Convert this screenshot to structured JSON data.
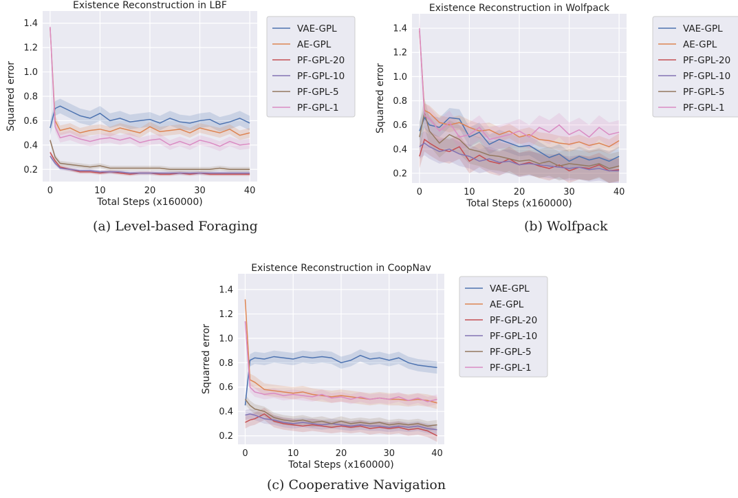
{
  "captions": {
    "a": "(a) Level-based Foraging",
    "b": "(b) Wolfpack",
    "c": "(c) Cooperative Navigation"
  },
  "colors": {
    "VAE-GPL": "#4c72b0",
    "AE-GPL": "#dd8452",
    "PF-GPL-20": "#c44e52",
    "PF-GPL-10": "#8172b3",
    "PF-GPL-5": "#937860",
    "PF-GPL-1": "#da8bc3",
    "plot_bg": "#eaeaf2",
    "grid": "#ffffff"
  },
  "chart_data": [
    {
      "type": "line",
      "title": "Existence Reconstruction in LBF",
      "xlabel": "Total Steps (x160000)",
      "ylabel": "Squarred error",
      "xlim": [
        -1.5,
        41.5
      ],
      "ylim": [
        0.1,
        1.5
      ],
      "xticks": [
        0,
        10,
        20,
        30,
        40
      ],
      "yticks": [
        0.2,
        0.4,
        0.6,
        0.8,
        1.0,
        1.2,
        1.4
      ],
      "legend_position": "outside-right-top",
      "grid": true,
      "series": [
        {
          "name": "VAE-GPL",
          "x": [
            0,
            1,
            2,
            4,
            6,
            8,
            10,
            12,
            14,
            16,
            18,
            20,
            22,
            24,
            26,
            28,
            30,
            32,
            34,
            36,
            38,
            40
          ],
          "y": [
            0.54,
            0.7,
            0.72,
            0.68,
            0.64,
            0.62,
            0.66,
            0.6,
            0.62,
            0.59,
            0.6,
            0.61,
            0.58,
            0.62,
            0.59,
            0.58,
            0.6,
            0.61,
            0.57,
            0.59,
            0.62,
            0.58
          ],
          "band": 0.06
        },
        {
          "name": "AE-GPL",
          "x": [
            0,
            1,
            2,
            4,
            6,
            8,
            10,
            12,
            14,
            16,
            18,
            20,
            22,
            24,
            26,
            28,
            30,
            32,
            34,
            36,
            38,
            40
          ],
          "y": [
            1.36,
            0.6,
            0.52,
            0.54,
            0.5,
            0.52,
            0.53,
            0.51,
            0.54,
            0.52,
            0.5,
            0.55,
            0.51,
            0.52,
            0.53,
            0.5,
            0.54,
            0.52,
            0.5,
            0.53,
            0.48,
            0.5
          ],
          "band": 0.04
        },
        {
          "name": "PF-GPL-20",
          "x": [
            0,
            1,
            2,
            4,
            6,
            8,
            10,
            12,
            14,
            16,
            18,
            20,
            22,
            24,
            26,
            28,
            30,
            32,
            34,
            36,
            38,
            40
          ],
          "y": [
            0.34,
            0.27,
            0.22,
            0.2,
            0.18,
            0.18,
            0.17,
            0.18,
            0.17,
            0.16,
            0.17,
            0.17,
            0.16,
            0.16,
            0.17,
            0.16,
            0.17,
            0.16,
            0.16,
            0.16,
            0.16,
            0.16
          ],
          "band": 0.015
        },
        {
          "name": "PF-GPL-10",
          "x": [
            0,
            1,
            2,
            4,
            6,
            8,
            10,
            12,
            14,
            16,
            18,
            20,
            22,
            24,
            26,
            28,
            30,
            32,
            34,
            36,
            38,
            40
          ],
          "y": [
            0.31,
            0.25,
            0.21,
            0.2,
            0.19,
            0.19,
            0.18,
            0.18,
            0.18,
            0.17,
            0.17,
            0.17,
            0.17,
            0.17,
            0.17,
            0.17,
            0.17,
            0.17,
            0.17,
            0.17,
            0.17,
            0.17
          ],
          "band": 0.015
        },
        {
          "name": "PF-GPL-5",
          "x": [
            0,
            1,
            2,
            4,
            6,
            8,
            10,
            12,
            14,
            16,
            18,
            20,
            22,
            24,
            26,
            28,
            30,
            32,
            34,
            36,
            38,
            40
          ],
          "y": [
            0.44,
            0.3,
            0.25,
            0.24,
            0.23,
            0.22,
            0.23,
            0.21,
            0.21,
            0.21,
            0.21,
            0.21,
            0.21,
            0.2,
            0.2,
            0.2,
            0.2,
            0.2,
            0.21,
            0.2,
            0.2,
            0.2
          ],
          "band": 0.02
        },
        {
          "name": "PF-GPL-1",
          "x": [
            0,
            1,
            2,
            4,
            6,
            8,
            10,
            12,
            14,
            16,
            18,
            20,
            22,
            24,
            26,
            28,
            30,
            32,
            34,
            36,
            38,
            40
          ],
          "y": [
            1.37,
            0.55,
            0.46,
            0.48,
            0.45,
            0.43,
            0.45,
            0.46,
            0.44,
            0.46,
            0.42,
            0.44,
            0.45,
            0.4,
            0.43,
            0.4,
            0.44,
            0.42,
            0.39,
            0.43,
            0.4,
            0.41
          ],
          "band": 0.04
        }
      ]
    },
    {
      "type": "line",
      "title": "Existence Reconstruction in Wolfpack",
      "xlabel": "Total Steps (x160000)",
      "ylabel": "Squarred error",
      "xlim": [
        -1.5,
        41.5
      ],
      "ylim": [
        0.12,
        1.52
      ],
      "xticks": [
        0,
        10,
        20,
        30,
        40
      ],
      "yticks": [
        0.2,
        0.4,
        0.6,
        0.8,
        1.0,
        1.2,
        1.4
      ],
      "legend_position": "outside-right-top",
      "grid": true,
      "series": [
        {
          "name": "VAE-GPL",
          "x": [
            0,
            1,
            2,
            4,
            6,
            8,
            10,
            12,
            14,
            16,
            18,
            20,
            22,
            24,
            26,
            28,
            30,
            32,
            34,
            36,
            38,
            40
          ],
          "y": [
            0.55,
            0.66,
            0.6,
            0.58,
            0.66,
            0.65,
            0.5,
            0.54,
            0.44,
            0.48,
            0.45,
            0.42,
            0.43,
            0.38,
            0.33,
            0.36,
            0.3,
            0.34,
            0.31,
            0.33,
            0.3,
            0.34
          ],
          "band": 0.08
        },
        {
          "name": "AE-GPL",
          "x": [
            0,
            1,
            2,
            4,
            6,
            8,
            10,
            12,
            14,
            16,
            18,
            20,
            22,
            24,
            26,
            28,
            30,
            32,
            34,
            36,
            38,
            40
          ],
          "y": [
            1.38,
            0.72,
            0.7,
            0.62,
            0.6,
            0.62,
            0.58,
            0.55,
            0.56,
            0.52,
            0.55,
            0.5,
            0.52,
            0.48,
            0.47,
            0.45,
            0.44,
            0.46,
            0.43,
            0.45,
            0.42,
            0.47
          ],
          "band": 0.06
        },
        {
          "name": "PF-GPL-20",
          "x": [
            0,
            1,
            2,
            4,
            6,
            8,
            10,
            12,
            14,
            16,
            18,
            20,
            22,
            24,
            26,
            28,
            30,
            32,
            34,
            36,
            38,
            40
          ],
          "y": [
            0.34,
            0.48,
            0.45,
            0.4,
            0.38,
            0.42,
            0.3,
            0.35,
            0.3,
            0.28,
            0.32,
            0.27,
            0.29,
            0.26,
            0.24,
            0.27,
            0.22,
            0.25,
            0.24,
            0.27,
            0.22,
            0.23
          ],
          "band": 0.1
        },
        {
          "name": "PF-GPL-10",
          "x": [
            0,
            1,
            2,
            4,
            6,
            8,
            10,
            12,
            14,
            16,
            18,
            20,
            22,
            24,
            26,
            28,
            30,
            32,
            34,
            36,
            38,
            40
          ],
          "y": [
            0.42,
            0.45,
            0.42,
            0.38,
            0.4,
            0.36,
            0.34,
            0.3,
            0.32,
            0.29,
            0.3,
            0.27,
            0.28,
            0.27,
            0.26,
            0.25,
            0.24,
            0.25,
            0.23,
            0.24,
            0.22,
            0.22
          ],
          "band": 0.1
        },
        {
          "name": "PF-GPL-5",
          "x": [
            0,
            1,
            2,
            4,
            6,
            8,
            10,
            12,
            14,
            16,
            18,
            20,
            22,
            24,
            26,
            28,
            30,
            32,
            34,
            36,
            38,
            40
          ],
          "y": [
            0.5,
            0.7,
            0.55,
            0.45,
            0.52,
            0.48,
            0.4,
            0.38,
            0.35,
            0.34,
            0.32,
            0.3,
            0.31,
            0.28,
            0.3,
            0.26,
            0.28,
            0.27,
            0.26,
            0.28,
            0.24,
            0.26
          ],
          "band": 0.12
        },
        {
          "name": "PF-GPL-1",
          "x": [
            0,
            1,
            2,
            4,
            6,
            8,
            10,
            12,
            14,
            16,
            18,
            20,
            22,
            24,
            26,
            28,
            30,
            32,
            34,
            36,
            38,
            40
          ],
          "y": [
            1.4,
            0.68,
            0.65,
            0.55,
            0.62,
            0.5,
            0.52,
            0.58,
            0.48,
            0.5,
            0.52,
            0.55,
            0.5,
            0.58,
            0.54,
            0.6,
            0.52,
            0.56,
            0.5,
            0.58,
            0.52,
            0.54
          ],
          "band": 0.1
        }
      ]
    },
    {
      "type": "line",
      "title": "Existence Reconstruction in CoopNav",
      "xlabel": "Total Steps (x160000)",
      "ylabel": "Squarred error",
      "xlim": [
        -1.5,
        41.5
      ],
      "ylim": [
        0.13,
        1.53
      ],
      "xticks": [
        0,
        10,
        20,
        30,
        40
      ],
      "yticks": [
        0.2,
        0.4,
        0.6,
        0.8,
        1.0,
        1.2,
        1.4
      ],
      "legend_position": "outside-right-top",
      "grid": true,
      "series": [
        {
          "name": "VAE-GPL",
          "x": [
            0,
            1,
            2,
            4,
            6,
            8,
            10,
            12,
            14,
            16,
            18,
            20,
            22,
            24,
            26,
            28,
            30,
            32,
            34,
            36,
            38,
            40
          ],
          "y": [
            0.45,
            0.82,
            0.84,
            0.83,
            0.85,
            0.84,
            0.83,
            0.85,
            0.84,
            0.85,
            0.84,
            0.8,
            0.82,
            0.86,
            0.83,
            0.84,
            0.82,
            0.84,
            0.8,
            0.78,
            0.77,
            0.76
          ],
          "band": 0.05
        },
        {
          "name": "AE-GPL",
          "x": [
            0,
            1,
            2,
            4,
            6,
            8,
            10,
            12,
            14,
            16,
            18,
            20,
            22,
            24,
            26,
            28,
            30,
            32,
            34,
            36,
            38,
            40
          ],
          "y": [
            1.32,
            0.66,
            0.64,
            0.58,
            0.57,
            0.56,
            0.55,
            0.56,
            0.54,
            0.53,
            0.52,
            0.53,
            0.52,
            0.51,
            0.5,
            0.51,
            0.5,
            0.5,
            0.49,
            0.5,
            0.49,
            0.47
          ],
          "band": 0.05
        },
        {
          "name": "PF-GPL-20",
          "x": [
            0,
            1,
            2,
            4,
            6,
            8,
            10,
            12,
            14,
            16,
            18,
            20,
            22,
            24,
            26,
            28,
            30,
            32,
            34,
            36,
            38,
            40
          ],
          "y": [
            0.31,
            0.33,
            0.34,
            0.38,
            0.32,
            0.3,
            0.29,
            0.28,
            0.29,
            0.28,
            0.27,
            0.28,
            0.27,
            0.28,
            0.26,
            0.27,
            0.26,
            0.27,
            0.25,
            0.26,
            0.24,
            0.2
          ],
          "band": 0.05
        },
        {
          "name": "PF-GPL-10",
          "x": [
            0,
            1,
            2,
            4,
            6,
            8,
            10,
            12,
            14,
            16,
            18,
            20,
            22,
            24,
            26,
            28,
            30,
            32,
            34,
            36,
            38,
            40
          ],
          "y": [
            0.37,
            0.38,
            0.37,
            0.34,
            0.33,
            0.31,
            0.3,
            0.31,
            0.3,
            0.29,
            0.3,
            0.29,
            0.28,
            0.29,
            0.28,
            0.28,
            0.27,
            0.28,
            0.27,
            0.28,
            0.26,
            0.25
          ],
          "band": 0.04
        },
        {
          "name": "PF-GPL-5",
          "x": [
            0,
            1,
            2,
            4,
            6,
            8,
            10,
            12,
            14,
            16,
            18,
            20,
            22,
            24,
            26,
            28,
            30,
            32,
            34,
            36,
            38,
            40
          ],
          "y": [
            0.5,
            0.45,
            0.42,
            0.4,
            0.35,
            0.33,
            0.32,
            0.33,
            0.31,
            0.32,
            0.3,
            0.32,
            0.3,
            0.31,
            0.3,
            0.31,
            0.29,
            0.3,
            0.29,
            0.3,
            0.28,
            0.29
          ],
          "band": 0.04
        },
        {
          "name": "PF-GPL-1",
          "x": [
            0,
            1,
            2,
            4,
            6,
            8,
            10,
            12,
            14,
            16,
            18,
            20,
            22,
            24,
            26,
            28,
            30,
            32,
            34,
            36,
            38,
            40
          ],
          "y": [
            1.14,
            0.6,
            0.56,
            0.54,
            0.55,
            0.53,
            0.54,
            0.53,
            0.52,
            0.54,
            0.51,
            0.52,
            0.5,
            0.52,
            0.5,
            0.51,
            0.5,
            0.52,
            0.49,
            0.51,
            0.48,
            0.5
          ],
          "band": 0.04
        }
      ]
    }
  ]
}
